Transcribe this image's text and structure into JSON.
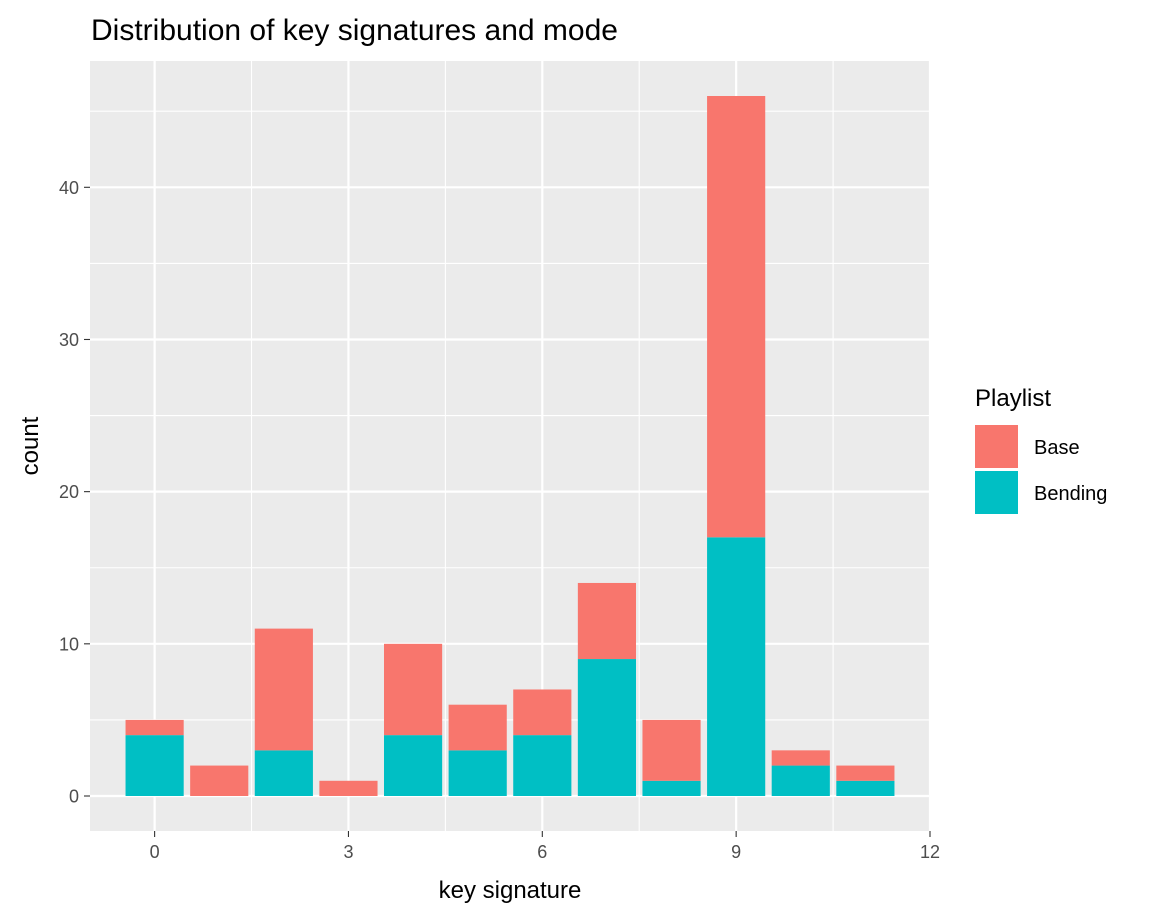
{
  "chart_data": {
    "type": "bar",
    "stacked": true,
    "title": "Distribution of key signatures and mode",
    "xlabel": "key signature",
    "ylabel": "count",
    "x": [
      0,
      1,
      2,
      3,
      4,
      5,
      6,
      7,
      8,
      9,
      10,
      11
    ],
    "series": [
      {
        "name": "Bending",
        "color": "#00BFC4",
        "values": [
          4,
          0,
          3,
          0,
          4,
          3,
          4,
          9,
          1,
          17,
          2,
          1
        ]
      },
      {
        "name": "Base",
        "color": "#F8766D",
        "values": [
          1,
          2,
          8,
          1,
          6,
          3,
          3,
          5,
          4,
          29,
          1,
          1
        ]
      }
    ],
    "xlim": [
      -1,
      12
    ],
    "ylim": [
      -2.3,
      48.3
    ],
    "x_ticks": [
      0,
      3,
      6,
      9,
      12
    ],
    "x_tick_labels": [
      "0",
      "3",
      "6",
      "9",
      "12"
    ],
    "y_ticks": [
      0,
      10,
      20,
      30,
      40
    ],
    "y_tick_labels": [
      "0",
      "10",
      "20",
      "30",
      "40"
    ],
    "grid": true,
    "panel_background": "#EBEBEB",
    "legend": {
      "title": "Playlist",
      "position": "right",
      "entries": [
        {
          "label": "Base",
          "color": "#F8766D"
        },
        {
          "label": "Bending",
          "color": "#00BFC4"
        }
      ]
    }
  }
}
